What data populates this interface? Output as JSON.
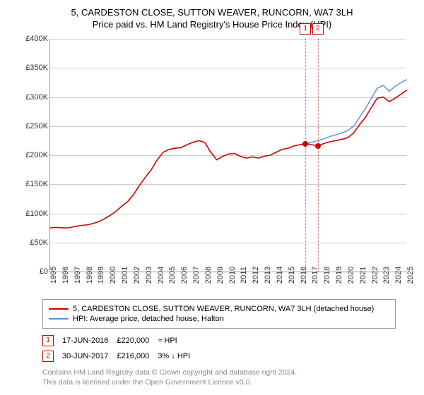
{
  "title": "5, CARDESTON CLOSE, SUTTON WEAVER, RUNCORN, WA7 3LH",
  "subtitle": "Price paid vs. HM Land Registry's House Price Index (HPI)",
  "chart": {
    "type": "line",
    "background_color": "#ffffff",
    "grid_color": "#cccccc",
    "axis_color": "#999999",
    "tick_font_size": 11,
    "y": {
      "min": 0,
      "max": 400000,
      "step_label": "£50K",
      "ticks": [
        "£0",
        "£50K",
        "£100K",
        "£150K",
        "£200K",
        "£250K",
        "£300K",
        "£350K",
        "£400K"
      ]
    },
    "x": {
      "min": 1995,
      "max": 2025,
      "ticks": [
        1995,
        1996,
        1997,
        1998,
        1999,
        2000,
        2001,
        2002,
        2003,
        2004,
        2005,
        2006,
        2007,
        2008,
        2009,
        2010,
        2011,
        2012,
        2013,
        2014,
        2015,
        2016,
        2017,
        2018,
        2019,
        2020,
        2021,
        2022,
        2023,
        2024,
        2025
      ]
    },
    "series": [
      {
        "id": "subject",
        "label": "5, CARDESTON CLOSE, SUTTON WEAVER, RUNCORN, WA7 3LH (detached house)",
        "color": "#cc0000",
        "line_width": 1.6,
        "points": [
          [
            1995.0,
            75000
          ],
          [
            1995.5,
            76000
          ],
          [
            1996.0,
            75000
          ],
          [
            1996.5,
            75000
          ],
          [
            1997.0,
            77000
          ],
          [
            1997.5,
            79000
          ],
          [
            1998.0,
            80000
          ],
          [
            1998.5,
            82000
          ],
          [
            1999.0,
            85000
          ],
          [
            1999.5,
            90000
          ],
          [
            2000.0,
            96000
          ],
          [
            2000.5,
            103000
          ],
          [
            2001.0,
            112000
          ],
          [
            2001.5,
            120000
          ],
          [
            2002.0,
            132000
          ],
          [
            2002.5,
            148000
          ],
          [
            2003.0,
            162000
          ],
          [
            2003.5,
            175000
          ],
          [
            2004.0,
            192000
          ],
          [
            2004.5,
            205000
          ],
          [
            2005.0,
            210000
          ],
          [
            2005.5,
            212000
          ],
          [
            2006.0,
            213000
          ],
          [
            2006.5,
            218000
          ],
          [
            2007.0,
            222000
          ],
          [
            2007.5,
            225000
          ],
          [
            2008.0,
            222000
          ],
          [
            2008.5,
            205000
          ],
          [
            2009.0,
            192000
          ],
          [
            2009.5,
            198000
          ],
          [
            2010.0,
            202000
          ],
          [
            2010.5,
            203000
          ],
          [
            2011.0,
            198000
          ],
          [
            2011.5,
            195000
          ],
          [
            2012.0,
            197000
          ],
          [
            2012.5,
            195000
          ],
          [
            2013.0,
            198000
          ],
          [
            2013.5,
            200000
          ],
          [
            2014.0,
            205000
          ],
          [
            2014.5,
            210000
          ],
          [
            2015.0,
            212000
          ],
          [
            2015.5,
            216000
          ],
          [
            2016.0,
            218000
          ],
          [
            2016.46,
            220000
          ],
          [
            2017.0,
            218000
          ],
          [
            2017.5,
            216000
          ],
          [
            2018.0,
            220000
          ],
          [
            2018.5,
            223000
          ],
          [
            2019.0,
            225000
          ],
          [
            2019.5,
            227000
          ],
          [
            2020.0,
            230000
          ],
          [
            2020.5,
            238000
          ],
          [
            2021.0,
            252000
          ],
          [
            2021.5,
            265000
          ],
          [
            2022.0,
            282000
          ],
          [
            2022.5,
            298000
          ],
          [
            2023.0,
            300000
          ],
          [
            2023.5,
            292000
          ],
          [
            2024.0,
            298000
          ],
          [
            2024.5,
            305000
          ],
          [
            2025.0,
            312000
          ]
        ]
      },
      {
        "id": "hpi",
        "label": "HPI: Average price, detached house, Halton",
        "color": "#5b8ecb",
        "line_width": 1.4,
        "points": [
          [
            2016.46,
            220000
          ],
          [
            2017.0,
            222000
          ],
          [
            2017.5,
            225000
          ],
          [
            2018.0,
            228000
          ],
          [
            2018.5,
            232000
          ],
          [
            2019.0,
            235000
          ],
          [
            2019.5,
            238000
          ],
          [
            2020.0,
            242000
          ],
          [
            2020.5,
            250000
          ],
          [
            2021.0,
            265000
          ],
          [
            2021.5,
            280000
          ],
          [
            2022.0,
            298000
          ],
          [
            2022.5,
            315000
          ],
          [
            2023.0,
            320000
          ],
          [
            2023.5,
            310000
          ],
          [
            2024.0,
            318000
          ],
          [
            2024.5,
            325000
          ],
          [
            2025.0,
            330000
          ]
        ]
      }
    ],
    "markers": [
      {
        "n": "1",
        "year": 2016.46,
        "value": 220000
      },
      {
        "n": "2",
        "year": 2017.5,
        "value": 216000
      }
    ]
  },
  "transactions": [
    {
      "n": "1",
      "date": "17-JUN-2016",
      "price": "£220,000",
      "delta": "≈ HPI"
    },
    {
      "n": "2",
      "date": "30-JUN-2017",
      "price": "£216,000",
      "delta": "3% ↓ HPI"
    }
  ],
  "footnote": {
    "line1": "Contains HM Land Registry data © Crown copyright and database right 2024.",
    "line2": "This data is licensed under the Open Government Licence v3.0."
  }
}
